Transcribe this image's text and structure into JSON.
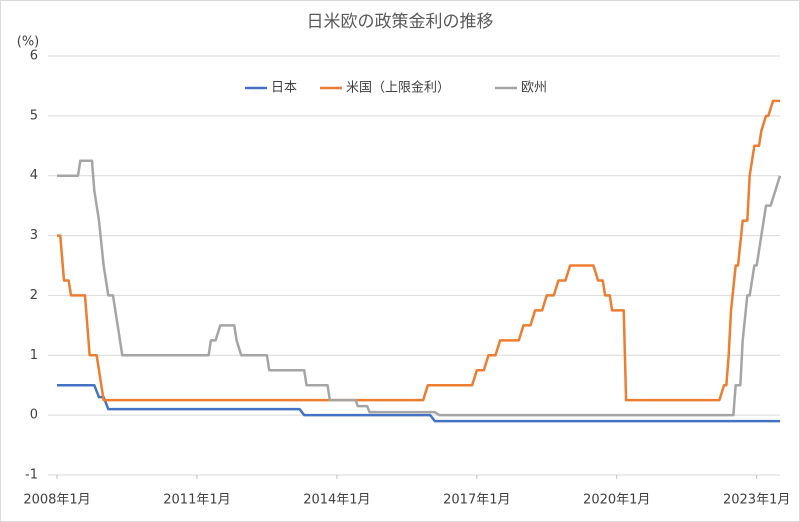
{
  "chart_data": {
    "type": "line",
    "title": "日米欧の政策金利の推移",
    "y_label": "(%)",
    "xlim": [
      2008,
      2023.5
    ],
    "xticks": [
      {
        "value": 2008,
        "label": "2008年1月"
      },
      {
        "value": 2011,
        "label": "2011年1月"
      },
      {
        "value": 2014,
        "label": "2014年1月"
      },
      {
        "value": 2017,
        "label": "2017年1月"
      },
      {
        "value": 2020,
        "label": "2020年1月"
      },
      {
        "value": 2023,
        "label": "2023年1月"
      }
    ],
    "ylim": [
      -1,
      6
    ],
    "yticks": [
      -1,
      0,
      1,
      2,
      3,
      4,
      5,
      6
    ],
    "grid": true,
    "legend": "top",
    "series": [
      {
        "name": "日本",
        "color": "#4472c4",
        "x": [
          2008,
          2008.8,
          2008.9,
          2009.0,
          2009.1,
          2013.2,
          2013.3,
          2016.0,
          2016.1,
          2023.5
        ],
        "values": [
          0.5,
          0.5,
          0.3,
          0.3,
          0.1,
          0.1,
          0,
          0,
          -0.1,
          -0.1
        ]
      },
      {
        "name": "米国（上限金利）",
        "color": "#ed7d31",
        "x": [
          2008,
          2008.07,
          2008.15,
          2008.25,
          2008.3,
          2008.6,
          2008.7,
          2008.85,
          2009.0,
          2015.85,
          2015.95,
          2016.9,
          2017.0,
          2017.15,
          2017.25,
          2017.4,
          2017.5,
          2017.9,
          2018.0,
          2018.15,
          2018.25,
          2018.4,
          2018.5,
          2018.65,
          2018.75,
          2018.9,
          2019.0,
          2019.5,
          2019.6,
          2019.7,
          2019.75,
          2019.85,
          2019.9,
          2020.15,
          2020.2,
          2022.2,
          2022.3,
          2022.35,
          2022.4,
          2022.45,
          2022.55,
          2022.6,
          2022.7,
          2022.8,
          2022.85,
          2022.95,
          2023.05,
          2023.1,
          2023.2,
          2023.25,
          2023.35,
          2023.5
        ],
        "values": [
          3,
          3,
          2.25,
          2.25,
          2,
          2,
          1,
          1,
          0.25,
          0.25,
          0.5,
          0.5,
          0.75,
          0.75,
          1,
          1,
          1.25,
          1.25,
          1.5,
          1.5,
          1.75,
          1.75,
          2,
          2,
          2.25,
          2.25,
          2.5,
          2.5,
          2.25,
          2.25,
          2,
          2,
          1.75,
          1.75,
          0.25,
          0.25,
          0.5,
          0.5,
          1,
          1.75,
          2.5,
          2.5,
          3.25,
          3.25,
          4,
          4.5,
          4.5,
          4.75,
          5,
          5,
          5.25,
          5.25
        ]
      },
      {
        "name": "欧州",
        "color": "#a5a5a5",
        "x": [
          2008,
          2008.45,
          2008.5,
          2008.75,
          2008.8,
          2008.9,
          2009.0,
          2009.1,
          2009.2,
          2009.3,
          2009.4,
          2011.25,
          2011.3,
          2011.4,
          2011.5,
          2011.8,
          2011.85,
          2011.95,
          2012.5,
          2012.55,
          2013.3,
          2013.35,
          2013.8,
          2013.85,
          2014.4,
          2014.45,
          2014.65,
          2014.7,
          2016.1,
          2016.2,
          2022.5,
          2022.55,
          2022.65,
          2022.7,
          2022.8,
          2022.85,
          2022.95,
          2023.0,
          2023.1,
          2023.2,
          2023.3,
          2023.5
        ],
        "values": [
          4,
          4,
          4.25,
          4.25,
          3.75,
          3.25,
          2.5,
          2,
          2,
          1.5,
          1,
          1,
          1.25,
          1.25,
          1.5,
          1.5,
          1.25,
          1,
          1,
          0.75,
          0.75,
          0.5,
          0.5,
          0.25,
          0.25,
          0.15,
          0.15,
          0.05,
          0.05,
          0,
          0,
          0.5,
          0.5,
          1.25,
          2,
          2,
          2.5,
          2.5,
          3,
          3.5,
          3.5,
          4
        ]
      }
    ]
  }
}
